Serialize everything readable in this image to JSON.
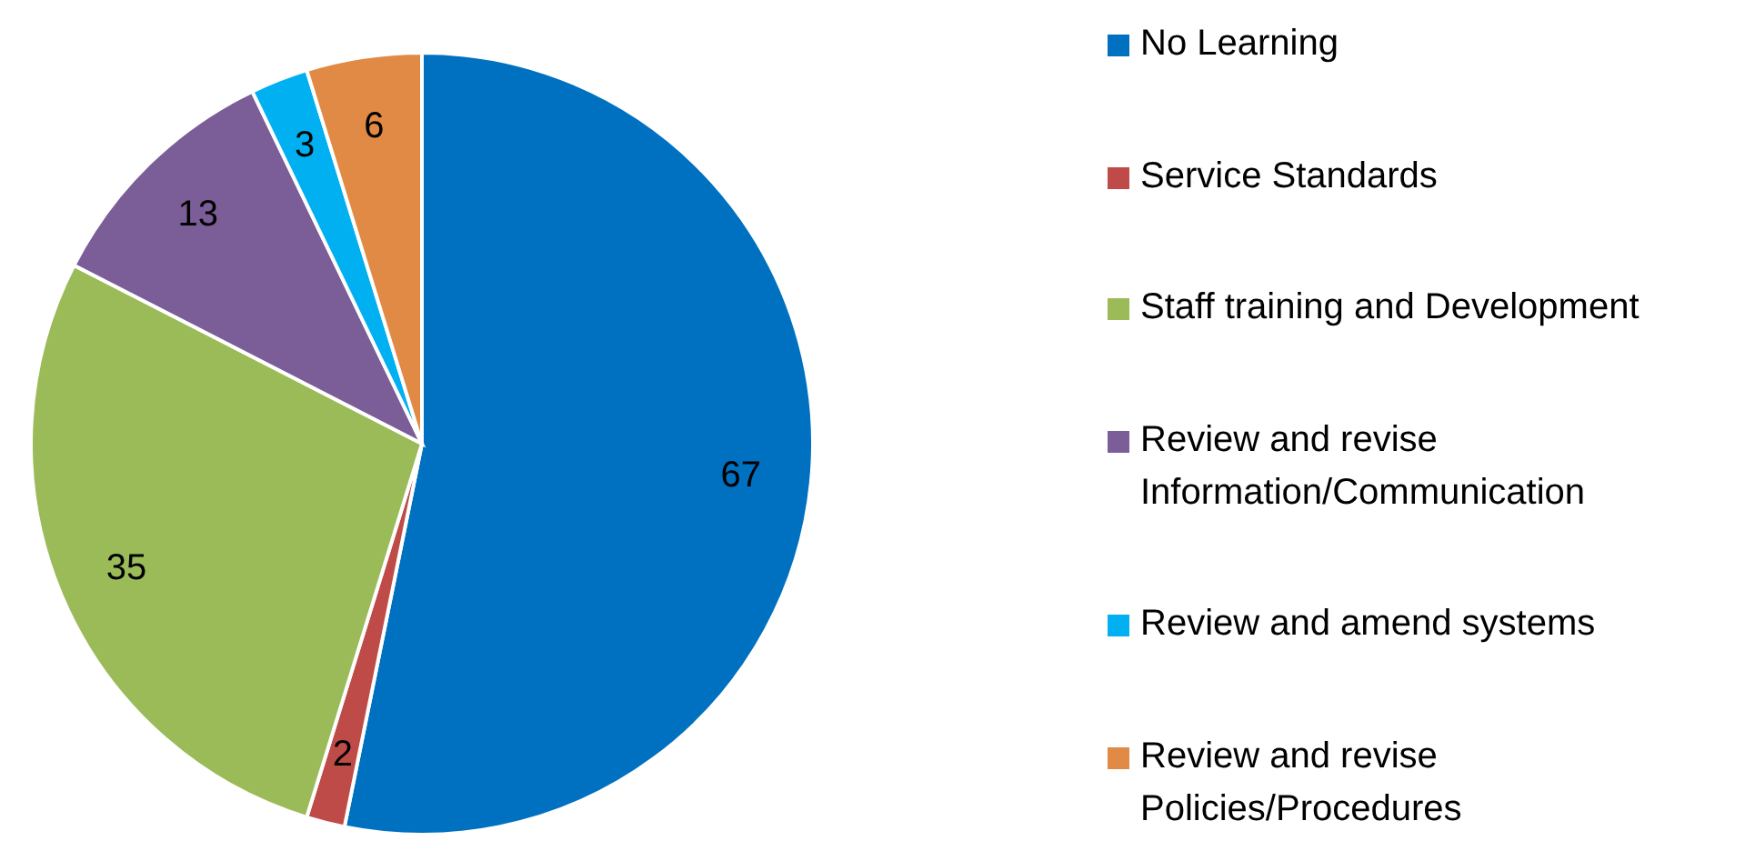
{
  "chart_data": {
    "type": "pie",
    "categories": [
      "No Learning",
      "Service Standards",
      "Staff training and Development",
      "Review and revise Information/Communication",
      "Review and amend systems",
      "Review and revise Policies/Procedures"
    ],
    "values": [
      67,
      2,
      35,
      13,
      3,
      6
    ],
    "colors": [
      "#0070c0",
      "#be4b48",
      "#9bbb59",
      "#7b5d98",
      "#00b0f0",
      "#e08a45"
    ],
    "data_labels": true,
    "legend": "right"
  }
}
